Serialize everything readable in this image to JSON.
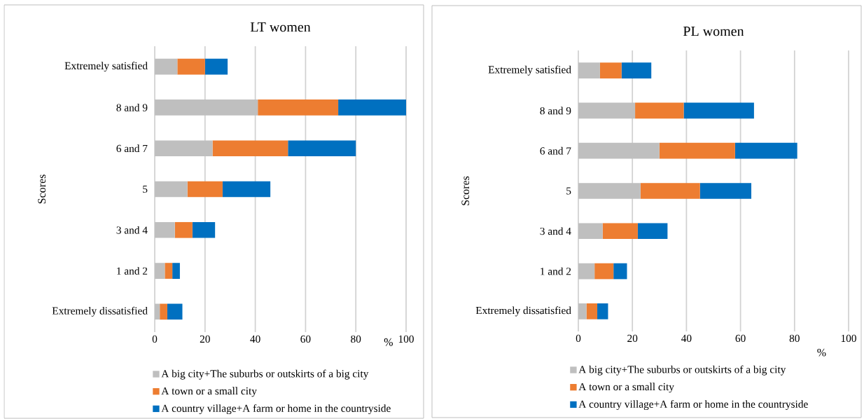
{
  "chart_data": [
    {
      "type": "bar",
      "orientation": "horizontal",
      "stacked": true,
      "title": "LT women",
      "ylabel": "Scores",
      "xlabel": "%",
      "categories": [
        "Extremely satisfied",
        "8 and 9",
        "6 and 7",
        "5",
        "3 and 4",
        "1 and 2",
        "Extremely dissatisfied"
      ],
      "series": [
        {
          "name": "A big city+The suburbs or outskirts of a big city",
          "color": "#bfbfbf",
          "values": [
            9,
            41,
            23,
            13,
            8,
            4,
            2
          ]
        },
        {
          "name": "A town or a small city",
          "color": "#ed7d31",
          "values": [
            11,
            32,
            30,
            14,
            7,
            3,
            3
          ]
        },
        {
          "name": "A country village+A farm or home in the countryside",
          "color": "#0070c0",
          "values": [
            9,
            27,
            27,
            19,
            9,
            3,
            6
          ]
        }
      ],
      "xlim": [
        0,
        100
      ],
      "xticks": [
        0,
        20,
        40,
        60,
        80,
        100
      ],
      "grid": "x",
      "legend": "bottom"
    },
    {
      "type": "bar",
      "orientation": "horizontal",
      "stacked": true,
      "title": "PL women",
      "ylabel": "Scores",
      "xlabel": "%",
      "categories": [
        "Extremely satisfied",
        "8 and 9",
        "6 and 7",
        "5",
        "3 and 4",
        "1 and 2",
        "Extremely dissatisfied"
      ],
      "series": [
        {
          "name": "A big city+The suburbs or outskirts of a big city",
          "color": "#bfbfbf",
          "values": [
            8,
            21,
            30,
            23,
            9,
            6,
            3
          ]
        },
        {
          "name": "A town or a small city",
          "color": "#ed7d31",
          "values": [
            8,
            18,
            28,
            22,
            13,
            7,
            4
          ]
        },
        {
          "name": "A country village+A farm or home in the countryside",
          "color": "#0070c0",
          "values": [
            11,
            26,
            23,
            19,
            11,
            5,
            4
          ]
        }
      ],
      "xlim": [
        0,
        100
      ],
      "xticks": [
        0,
        20,
        40,
        60,
        80,
        100
      ],
      "grid": "x",
      "legend": "bottom"
    }
  ]
}
